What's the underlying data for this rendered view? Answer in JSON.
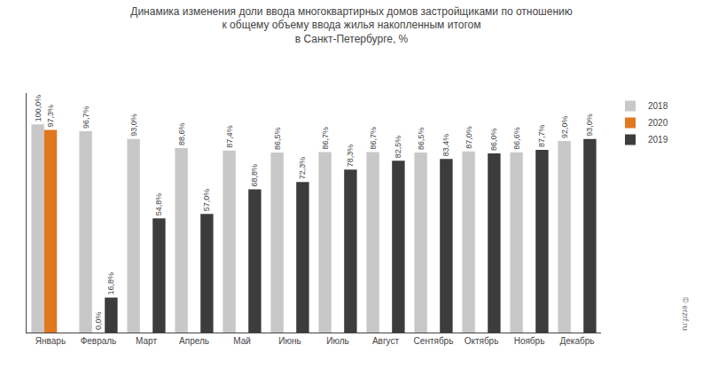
{
  "chart_data": {
    "type": "bar",
    "title": "Динамика изменения доли ввода многоквартирных домов застройщиками по отношению\nк общему объему ввода жилья накопленным итогом\nв Санкт-Петербурге, %",
    "categories": [
      "Январь",
      "Февраль",
      "Март",
      "Апрель",
      "Май",
      "Июнь",
      "Июль",
      "Август",
      "Сентябрь",
      "Октябрь",
      "Ноябрь",
      "Декабрь"
    ],
    "series": [
      {
        "name": "2018",
        "color": "#c8c8c8",
        "values": [
          100.0,
          96.7,
          93.0,
          88.6,
          87.4,
          86.5,
          86.7,
          86.7,
          86.5,
          87.0,
          86.6,
          92.0
        ],
        "value_labels": [
          "100,0%",
          "96,7%",
          "93,0%",
          "88,6%",
          "87,4%",
          "86,5%",
          "86,7%",
          "86,7%",
          "86,5%",
          "87,0%",
          "86,6%",
          "92,0%"
        ]
      },
      {
        "name": "2020",
        "color": "#e07820",
        "values": [
          97.3,
          0.0,
          null,
          null,
          null,
          null,
          null,
          null,
          null,
          null,
          null,
          null
        ],
        "value_labels": [
          "97,3%",
          "0,0%",
          null,
          null,
          null,
          null,
          null,
          null,
          null,
          null,
          null,
          null
        ]
      },
      {
        "name": "2019",
        "color": "#3c3c3c",
        "values": [
          null,
          16.8,
          54.8,
          57.0,
          68.8,
          72.3,
          78.3,
          82.5,
          83.4,
          86.0,
          87.7,
          93.0
        ],
        "value_labels": [
          null,
          "16,8%",
          "54,8%",
          "57,0%",
          "68,8%",
          "72,3%",
          "78,3%",
          "82,5%",
          "83,4%",
          "86,0%",
          "87,7%",
          "93,0%"
        ]
      }
    ],
    "ylim": [
      0,
      115
    ],
    "yticks": [],
    "tick_labels": "x",
    "grid": false,
    "legend": "right",
    "data_labels": true,
    "annotations": [
      "© erzrf.ru"
    ]
  }
}
